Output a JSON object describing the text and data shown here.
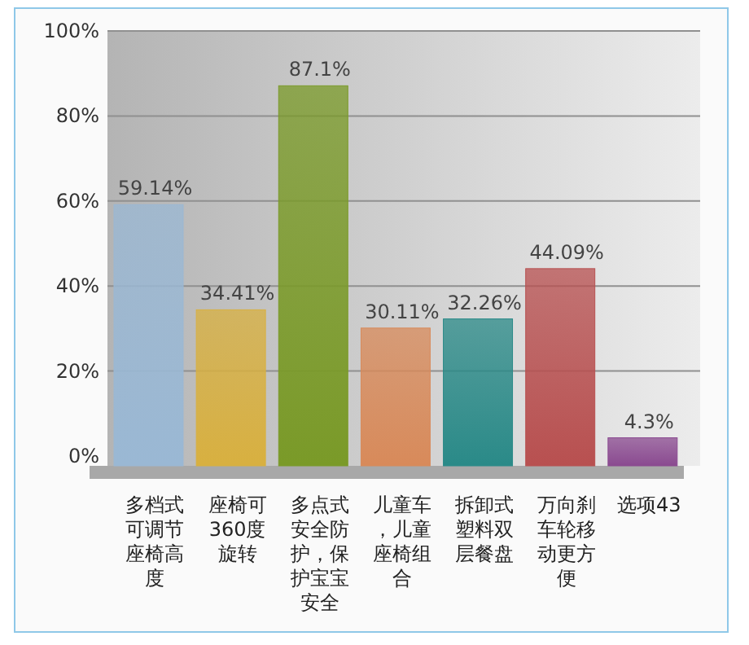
{
  "chart_data": {
    "type": "bar",
    "categories": [
      "多档式可调节座椅高度",
      "座椅可360度旋转",
      "多点式安全防护，保护宝宝安全",
      "儿童车，儿童座椅组合",
      "拆卸式塑料双层餐盘",
      "万向刹车轮移动更方便",
      "选项43"
    ],
    "values": [
      59.14,
      34.41,
      87.1,
      30.11,
      32.26,
      44.09,
      4.3
    ],
    "value_labels": [
      "59.14%",
      "34.41%",
      "87.1%",
      "30.11%",
      "32.26%",
      "44.09%",
      "4.3%"
    ],
    "colors": [
      "#9ab8d4",
      "#d8b040",
      "#7a9a28",
      "#d88a5a",
      "#2a8a88",
      "#b85050",
      "#8a4a90"
    ],
    "ylim": [
      0,
      100
    ],
    "yticks": [
      {
        "value": 0,
        "label": "0%"
      },
      {
        "value": 20,
        "label": "20%"
      },
      {
        "value": 40,
        "label": "40%"
      },
      {
        "value": 60,
        "label": "60%"
      },
      {
        "value": 80,
        "label": "80%"
      },
      {
        "value": 100,
        "label": "100%"
      }
    ],
    "grid": "y"
  }
}
